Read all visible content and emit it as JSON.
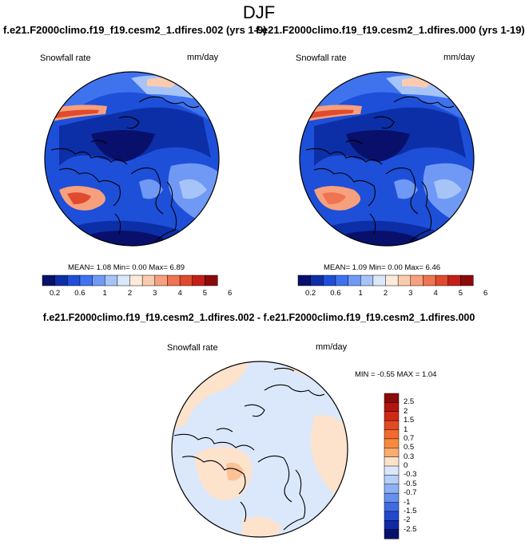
{
  "main_title": "DJF",
  "run_titles": {
    "left": "f.e21.F2000climo.f19_f19.cesm2_1.dfires.002 (yrs 1-9)",
    "right": "f.e21.F2000climo.f19_f19.cesm2_1.dfires.000 (yrs 1-19)"
  },
  "panels": {
    "left": {
      "variable": "Snowfall rate",
      "units": "mm/day",
      "stats": "MEAN=  1.08  Min=  0.00  Max=  6.89"
    },
    "right": {
      "variable": "Snowfall rate",
      "units": "mm/day",
      "stats": "MEAN=  1.09  Min=  0.00  Max=  6.46"
    },
    "diff": {
      "title": "f.e21.F2000climo.f19_f19.cesm2_1.dfires.002 - f.e21.F2000climo.f19_f19.cesm2_1.dfires.000",
      "variable": "Snowfall rate",
      "units": "mm/day",
      "stats": "MIN =  -0.55 MAX =  1.04"
    }
  },
  "colorbar_main": {
    "colors": [
      "#08106b",
      "#0c2fa8",
      "#1e4fd8",
      "#3f73ee",
      "#6f99f5",
      "#a6c4f8",
      "#d9e8fb",
      "#fdebd9",
      "#fbcbb0",
      "#f7a07d",
      "#ef7452",
      "#e04a2e",
      "#c22018",
      "#8d0a0a"
    ],
    "labels": [
      "0.2",
      "0.6",
      "1",
      "2",
      "3",
      "4",
      "5",
      "6"
    ]
  },
  "colorbar_diff": {
    "colors": [
      "#8d0a0a",
      "#b3150f",
      "#cf2a16",
      "#e34a22",
      "#f26a2e",
      "#f9893e",
      "#fbac6f",
      "#fde2cc",
      "#dbe8fb",
      "#b6d0f9",
      "#8db1f4",
      "#6690ee",
      "#3e6be3",
      "#2149c9",
      "#0f2aa3",
      "#08106b"
    ],
    "labels": [
      "2.5",
      "2",
      "1.5",
      "1",
      "0.7",
      "0.5",
      "0.3",
      "0",
      "-0.3",
      "-0.5",
      "-0.7",
      "-1",
      "-1.5",
      "-2",
      "-2.5"
    ]
  }
}
